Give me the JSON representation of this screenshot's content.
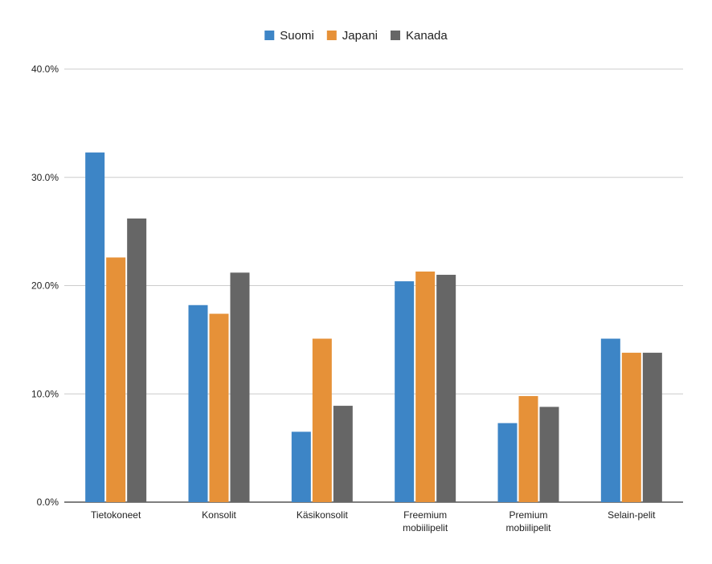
{
  "chart_data": {
    "type": "bar",
    "title": "",
    "xlabel": "",
    "ylabel": "",
    "categories": [
      [
        "Tietokoneet"
      ],
      [
        "Konsolit"
      ],
      [
        "Käsikonsolit"
      ],
      [
        "Freemium",
        "mobiilipelit"
      ],
      [
        "Premium",
        "mobiilipelit"
      ],
      [
        "Selain-pelit"
      ]
    ],
    "series": [
      {
        "name": "Suomi",
        "color": "#3d85c6",
        "values": [
          32.3,
          18.2,
          6.5,
          20.4,
          7.3,
          15.1
        ]
      },
      {
        "name": "Japani",
        "color": "#e69138",
        "values": [
          22.6,
          17.4,
          15.1,
          21.3,
          9.8,
          13.8
        ]
      },
      {
        "name": "Kanada",
        "color": "#666666",
        "values": [
          26.2,
          21.2,
          8.9,
          21.0,
          8.8,
          13.8
        ]
      }
    ],
    "ylim": [
      0,
      40
    ],
    "yticks": [
      {
        "value": 0,
        "label": "0.0%"
      },
      {
        "value": 10,
        "label": "10.0%"
      },
      {
        "value": 20,
        "label": "20.0%"
      },
      {
        "value": 30,
        "label": "30.0%"
      },
      {
        "value": 40,
        "label": "40.0%"
      }
    ],
    "grid": true,
    "legend_position": "top-center"
  }
}
